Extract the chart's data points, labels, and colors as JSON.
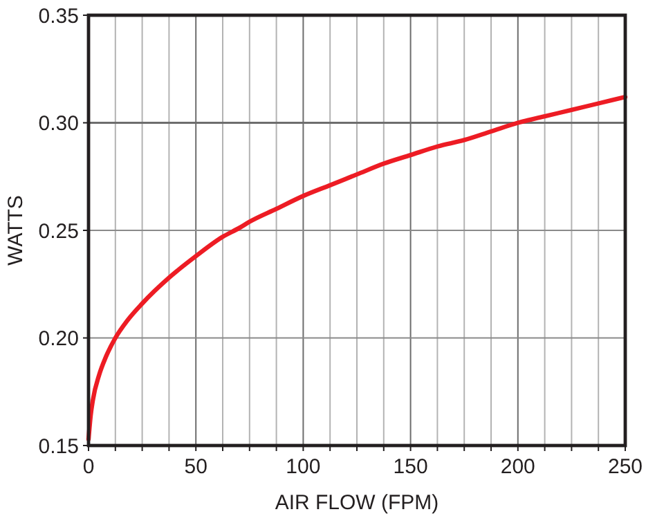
{
  "chart_data": {
    "type": "line",
    "xlabel": "AIR FLOW (FPM)",
    "ylabel": "WATTS",
    "x": [
      0,
      1,
      2,
      5,
      8,
      12.5,
      18,
      25,
      37.5,
      50,
      62.5,
      70,
      75,
      87.5,
      100,
      112.5,
      125,
      137.5,
      150,
      162.5,
      175,
      187.5,
      200,
      212.5,
      225,
      237.5,
      250
    ],
    "series": [
      {
        "color": "#ed1c24",
        "values": [
          0.153,
          0.164,
          0.171,
          0.183,
          0.191,
          0.2,
          0.208,
          0.216,
          0.228,
          0.238,
          0.247,
          0.251,
          0.254,
          0.26,
          0.266,
          0.271,
          0.276,
          0.281,
          0.285,
          0.289,
          0.292,
          0.296,
          0.3,
          0.303,
          0.306,
          0.309,
          0.312
        ]
      }
    ],
    "xlim": [
      0,
      250
    ],
    "ylim": [
      0.15,
      0.35
    ],
    "xticks": [
      0,
      {
        "value": 12.5,
        "label": null
      },
      {
        "value": 25,
        "label": null
      },
      {
        "value": 37.5,
        "label": null
      },
      50,
      {
        "value": 62.5,
        "label": null
      },
      {
        "value": 75,
        "label": null
      },
      {
        "value": 87.5,
        "label": null
      },
      100,
      {
        "value": 112.5,
        "label": null
      },
      {
        "value": 125,
        "label": null
      },
      {
        "value": 137.5,
        "label": null
      },
      150,
      {
        "value": 162.5,
        "label": null
      },
      {
        "value": 175,
        "label": null
      },
      {
        "value": 187.5,
        "label": null
      },
      200,
      {
        "value": 212.5,
        "label": null
      },
      {
        "value": 225,
        "label": null
      },
      {
        "value": 237.5,
        "label": null
      },
      250
    ],
    "yticks": [
      {
        "value": 0.15,
        "label": "0.15"
      },
      {
        "value": 0.2,
        "label": "0.20"
      },
      {
        "value": 0.25,
        "label": "0.25"
      },
      {
        "value": 0.3,
        "label": "0.30"
      },
      {
        "value": 0.35,
        "label": "0.35"
      }
    ],
    "ref_lines": [
      {
        "axis": "y",
        "value": 0.3,
        "color": "#6d6d6d"
      }
    ],
    "grid": true,
    "marker": "none",
    "line_style": "solid"
  }
}
